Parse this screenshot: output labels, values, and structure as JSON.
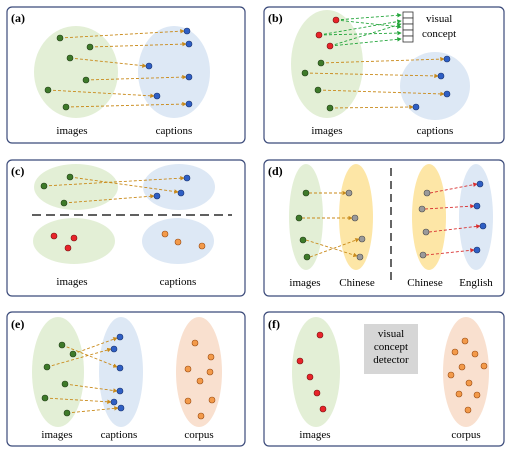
{
  "panels": [
    {
      "id": "a",
      "label": "(a)",
      "captions": [
        "images",
        "captions"
      ]
    },
    {
      "id": "b",
      "label": "(b)",
      "captions": [
        "images",
        "captions"
      ],
      "annotation": [
        "visual",
        "concept"
      ]
    },
    {
      "id": "c",
      "label": "(c)",
      "captions": [
        "images",
        "captions"
      ]
    },
    {
      "id": "d",
      "label": "(d)",
      "captions": [
        "images",
        "Chinese",
        "Chinese",
        "English"
      ]
    },
    {
      "id": "e",
      "label": "(e)",
      "captions": [
        "images",
        "captions",
        "corpus"
      ]
    },
    {
      "id": "f",
      "label": "(f)",
      "captions": [
        "images",
        "corpus"
      ],
      "detector": [
        "visual",
        "concept",
        "detector"
      ]
    }
  ],
  "colors": {
    "panel_border": "#3b4a7a",
    "green_region": "#e3efd6",
    "blue_region": "#dde8f5",
    "yellow_region": "#fde6a6",
    "orange_region": "#f9e0cf",
    "green_dot": "#3e7a2a",
    "blue_dot": "#2f5fc4",
    "red_dot": "#e8242a",
    "orange_dot": "#f39a4a",
    "gray_dot": "#9a9a9a",
    "arrow_orange": "#c98a1a",
    "arrow_green": "#23a53a",
    "arrow_red": "#d83030",
    "detector_box": "#d6d6d6"
  }
}
